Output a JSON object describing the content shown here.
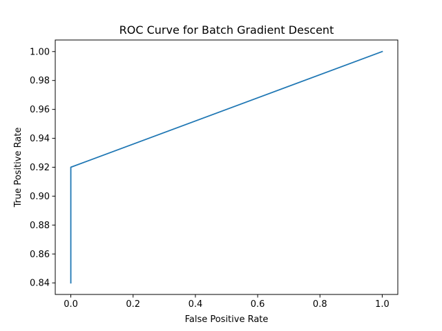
{
  "chart_data": {
    "type": "line",
    "title": "ROC Curve for Batch Gradient Descent",
    "xlabel": "False Positive Rate",
    "ylabel": "True Positive Rate",
    "xlim": [
      -0.05,
      1.05
    ],
    "ylim": [
      0.832,
      1.008
    ],
    "x_ticks": [
      0.0,
      0.2,
      0.4,
      0.6,
      0.8,
      1.0
    ],
    "x_tick_labels": [
      "0.0",
      "0.2",
      "0.4",
      "0.6",
      "0.8",
      "1.0"
    ],
    "y_ticks": [
      0.84,
      0.86,
      0.88,
      0.9,
      0.92,
      0.94,
      0.96,
      0.98,
      1.0
    ],
    "y_tick_labels": [
      "0.84",
      "0.86",
      "0.88",
      "0.90",
      "0.92",
      "0.94",
      "0.96",
      "0.98",
      "1.00"
    ],
    "grid": false,
    "legend": "none",
    "series": [
      {
        "color": "#1f77b4",
        "x": [
          0.0,
          0.0,
          1.0
        ],
        "y": [
          0.84,
          0.92,
          1.0
        ]
      }
    ]
  }
}
